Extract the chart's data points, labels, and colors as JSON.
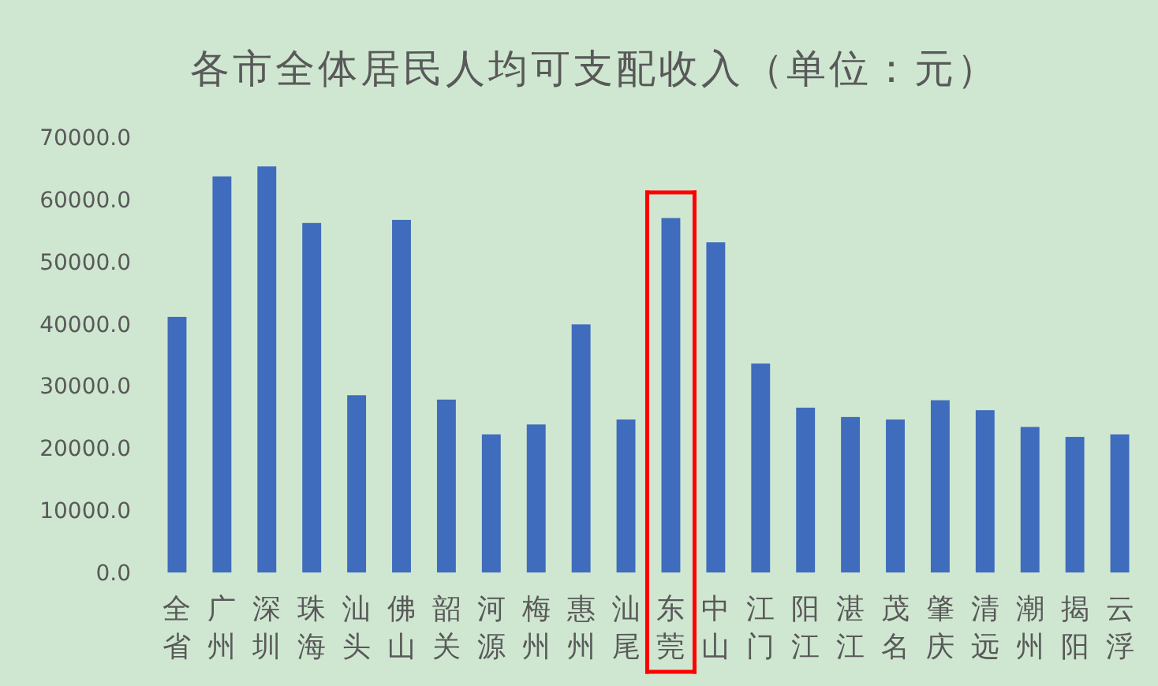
{
  "chart_data": {
    "type": "bar",
    "title": "各市全体居民人均可支配收入（单位：元）",
    "categories": [
      "全省",
      "广州",
      "深圳",
      "珠海",
      "汕头",
      "佛山",
      "韶关",
      "河源",
      "梅州",
      "惠州",
      "汕尾",
      "东莞",
      "中山",
      "江门",
      "阳江",
      "湛江",
      "茂名",
      "肇庆",
      "清远",
      "潮州",
      "揭阳",
      "云浮"
    ],
    "values": [
      41100,
      63700,
      65300,
      56200,
      28500,
      56700,
      27800,
      22200,
      23800,
      39900,
      24600,
      57000,
      53100,
      33600,
      26500,
      25000,
      24600,
      27700,
      26100,
      23400,
      21800,
      22200
    ],
    "color": "#3f6cbc",
    "ylim": [
      0,
      70000
    ],
    "yticks": [
      {
        "value": 0,
        "label": "0.0"
      },
      {
        "value": 10000,
        "label": "10000.0"
      },
      {
        "value": 20000,
        "label": "20000.0"
      },
      {
        "value": 30000,
        "label": "30000.0"
      },
      {
        "value": 40000,
        "label": "40000.0"
      },
      {
        "value": 50000,
        "label": "50000.0"
      },
      {
        "value": 60000,
        "label": "60000.0"
      },
      {
        "value": 70000,
        "label": "70000.0"
      }
    ],
    "grid": false
  }
}
